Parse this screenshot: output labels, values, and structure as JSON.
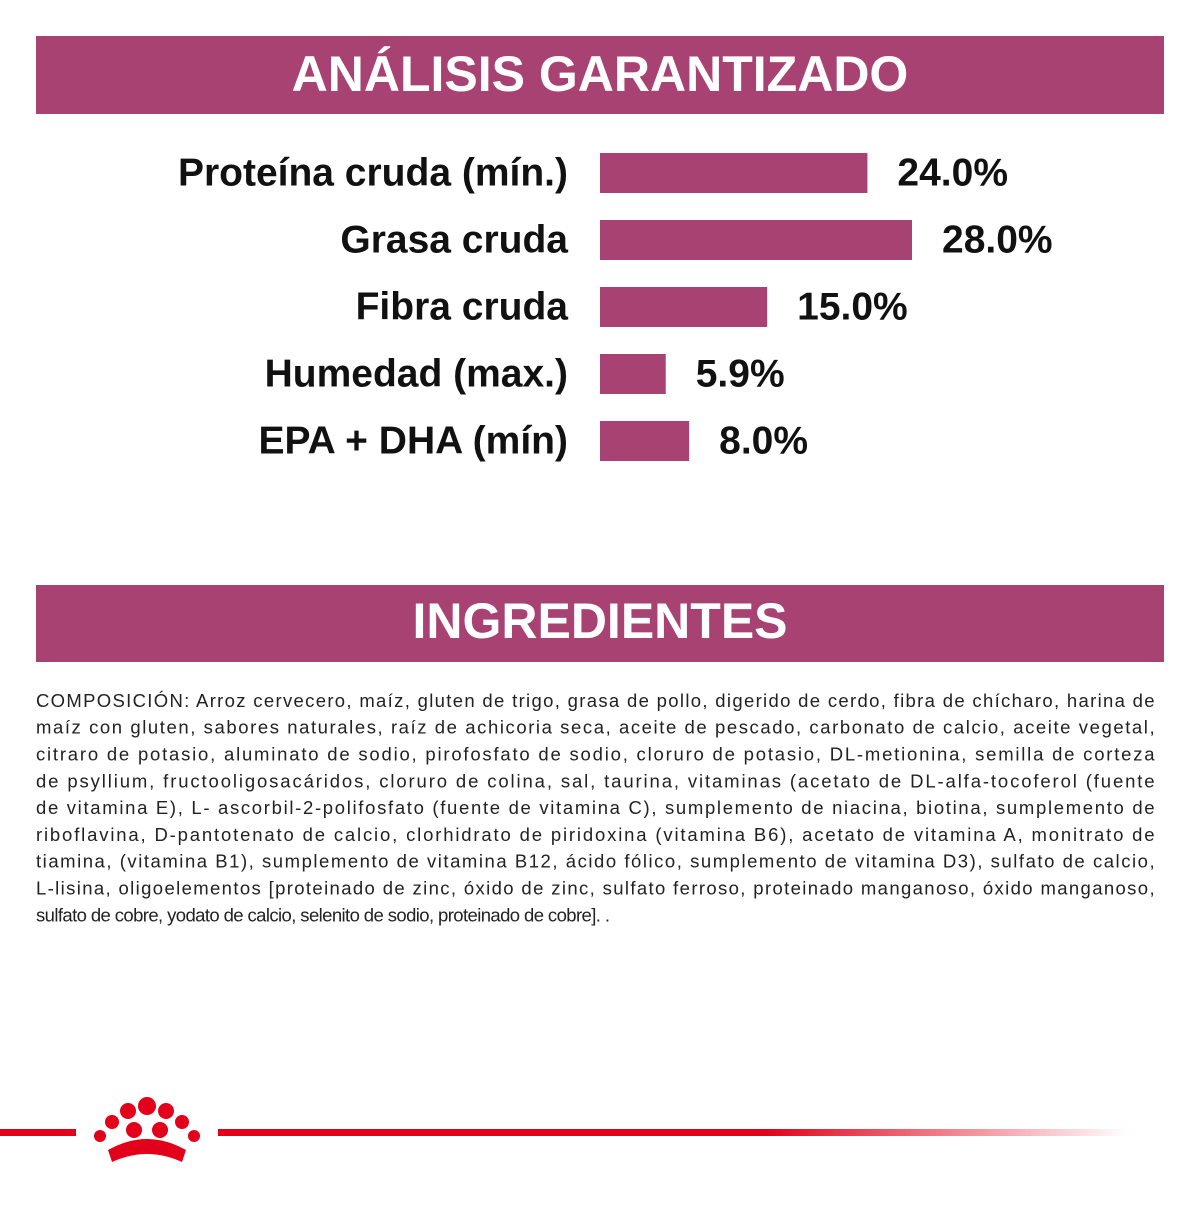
{
  "chart_data": {
    "type": "bar",
    "orientation": "horizontal",
    "title": "ANÁLISIS GARANTIZADO",
    "categories": [
      "Proteína cruda (mín.)",
      "Grasa cruda",
      "Fibra cruda",
      "Humedad (max.)",
      "EPA + DHA (mín)"
    ],
    "values": [
      24.0,
      28.0,
      15.0,
      5.9,
      8.0
    ],
    "value_labels": [
      "24.0%",
      "28.0%",
      "15.0%",
      "5.9%",
      "8.0%"
    ],
    "color": "#a84272"
  },
  "ingredients": {
    "title": "INGREDIENTES",
    "lines": [
      "COMPOSICIÓN: Arroz cervecero, maíz, gluten de trigo, grasa de pollo, digerido de cerdo, fibra de chícharo, harina de",
      "maíz con gluten, sabores naturales, raíz de achicoria seca, aceite de pescado, carbonato de calcio, aceite vegetal,",
      "citraro de potasio, aluminato de sodio, pirofosfato de sodio, cloruro de potasio, DL-metionina, semilla de corteza",
      "de psyllium, fructooligosacáridos, cloruro de colina, sal, taurina, vitaminas (acetato de DL-alfa-tocoferol (fuente",
      "de vitamina E), L- ascorbil-2-polifosfato (fuente de vitamina C), sumplemento de niacina, biotina, sumplemento de",
      "riboflavina, D-pantotenato de calcio, clorhidrato de piridoxina (vitamina B6), acetato de vitamina A, monitrato de",
      "tiamina, (vitamina B1), sumplemento de vitamina B12, ácido fólico, sumplemento de vitamina D3), sulfato de calcio,",
      "L-lisina, oligoelementos [proteinado de zinc, óxido de zinc, sulfato ferroso, proteinado manganoso, óxido manganoso,",
      "sulfato de cobre, yodato de calcio, selenito de sodio, proteinado de cobre]. ."
    ]
  }
}
